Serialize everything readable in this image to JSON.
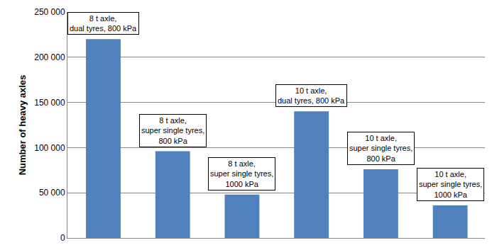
{
  "chart_data": {
    "type": "bar",
    "categories": [
      "8 t axle,\ndual tyres, 800 kPa",
      "8 t axle,\nsuper single tyres,\n800 kPa",
      "8 t axle,\nsuper single tyres,\n1000 kPa",
      "10 t axle,\ndual tyres, 800 kPa",
      "10 t axle,\nsuper single tyres,\n800 kPa",
      "10 t axle,\nsuper single tyres,\n1000 kPa"
    ],
    "values": [
      220000,
      96000,
      48000,
      140000,
      76000,
      36000
    ],
    "color": "#4f81bd",
    "y_label": "Number of heavy axles",
    "ylim": [
      0,
      250000
    ],
    "yticks": [
      0,
      {
        "value": 50000,
        "label": "50 000"
      },
      {
        "value": 100000,
        "label": "100 000"
      },
      {
        "value": 150000,
        "label": "150 000"
      },
      {
        "value": 200000,
        "label": "200 000"
      },
      {
        "value": 250000,
        "label": "250 000"
      }
    ],
    "grid": true,
    "tick_labels": "y"
  }
}
